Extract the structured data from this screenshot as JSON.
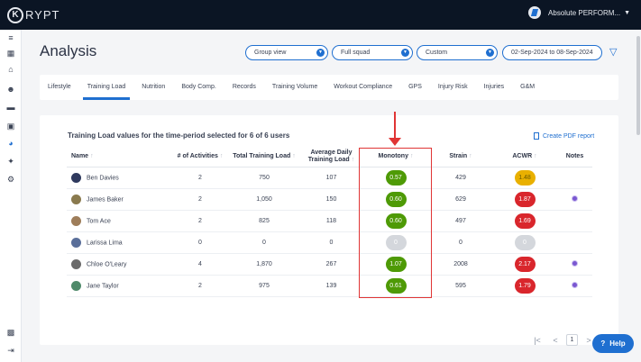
{
  "brand": {
    "logo_letter": "K",
    "name": "RYPT"
  },
  "account": {
    "name": "Absolute PERFORM...",
    "caret": "▼"
  },
  "sidebar": {
    "items": [
      {
        "name": "menu-icon",
        "glyph": "≡"
      },
      {
        "name": "calendar-icon",
        "glyph": "▦"
      },
      {
        "name": "home-icon",
        "glyph": "⌂"
      },
      {
        "name": "users-icon",
        "glyph": "☻"
      },
      {
        "name": "list-icon",
        "glyph": "▬"
      },
      {
        "name": "gallery-icon",
        "glyph": "▣"
      },
      {
        "name": "analysis-icon",
        "glyph": "◕"
      },
      {
        "name": "sparkle-icon",
        "glyph": "✦"
      },
      {
        "name": "settings-icon",
        "glyph": "⚙"
      },
      {
        "name": "gift-icon",
        "glyph": "▩"
      },
      {
        "name": "logout-icon",
        "glyph": "⇥"
      }
    ]
  },
  "page": {
    "title": "Analysis"
  },
  "filters": {
    "group_view": "Group view",
    "squad": "Full squad",
    "period": "Custom",
    "date_range": "02-Sep-2024 to 08-Sep-2024",
    "caret": "▼",
    "filter_glyph": "▽"
  },
  "tabs": [
    "Lifestyle",
    "Training Load",
    "Nutrition",
    "Body Comp.",
    "Records",
    "Training Volume",
    "Workout Compliance",
    "GPS",
    "Injury Risk",
    "Injuries",
    "G&M"
  ],
  "active_tab": "Training Load",
  "card": {
    "title": "Training Load values for the time-period selected for 6 of 6 users",
    "pdf_link": "Create PDF report"
  },
  "table": {
    "sort_glyph": "↑",
    "headers": {
      "name": "Name",
      "activities": "# of Activities",
      "total_load": "Total Training Load",
      "avg_load": "Average Daily Training Load",
      "monotony": "Monotony",
      "strain": "Strain",
      "acwr": "ACWR",
      "notes": "Notes"
    },
    "rows": [
      {
        "name": "Ben Davies",
        "activities": "2",
        "total_load": "750",
        "avg_load": "107",
        "monotony": "0.57",
        "strain": "429",
        "acwr": "1.48",
        "monotony_color": "#4e9a06",
        "acwr_color": "#e9b000",
        "acwr_text_color": "#6b5a00",
        "note": false,
        "avatar_color": "#2f3a5e"
      },
      {
        "name": "James Baker",
        "activities": "2",
        "total_load": "1,050",
        "avg_load": "150",
        "monotony": "0.60",
        "strain": "629",
        "acwr": "1.87",
        "monotony_color": "#4e9a06",
        "acwr_color": "#d9262c",
        "acwr_text_color": "#ffffff",
        "note": true,
        "avatar_color": "#8a7a4e"
      },
      {
        "name": "Tom Ace",
        "activities": "2",
        "total_load": "825",
        "avg_load": "118",
        "monotony": "0.60",
        "strain": "497",
        "acwr": "1.69",
        "monotony_color": "#4e9a06",
        "acwr_color": "#d9262c",
        "acwr_text_color": "#ffffff",
        "note": false,
        "avatar_color": "#9e7d5a"
      },
      {
        "name": "Larissa Lima",
        "activities": "0",
        "total_load": "0",
        "avg_load": "0",
        "monotony": "0",
        "strain": "0",
        "acwr": "0",
        "monotony_color": "#d4d7dc",
        "acwr_color": "#d4d7dc",
        "acwr_text_color": "#ffffff",
        "note": false,
        "avatar_color": "#5a6f9a"
      },
      {
        "name": "Chloe O'Leary",
        "activities": "4",
        "total_load": "1,870",
        "avg_load": "267",
        "monotony": "1.07",
        "strain": "2008",
        "acwr": "2.17",
        "monotony_color": "#4e9a06",
        "acwr_color": "#d9262c",
        "acwr_text_color": "#ffffff",
        "note": true,
        "avatar_color": "#6a6a6a"
      },
      {
        "name": "Jane Taylor",
        "activities": "2",
        "total_load": "975",
        "avg_load": "139",
        "monotony": "0.61",
        "strain": "595",
        "acwr": "1.79",
        "monotony_color": "#4e9a06",
        "acwr_color": "#d9262c",
        "acwr_text_color": "#ffffff",
        "note": true,
        "avatar_color": "#4f8a6a"
      }
    ]
  },
  "pagination": {
    "first": "|<",
    "prev": "<",
    "current": "1",
    "next": ">",
    "last": ">|"
  },
  "help": {
    "label": "Help",
    "glyph": "?"
  },
  "colors": {
    "accent": "#1f6fd0",
    "annotation": "#e03535"
  }
}
